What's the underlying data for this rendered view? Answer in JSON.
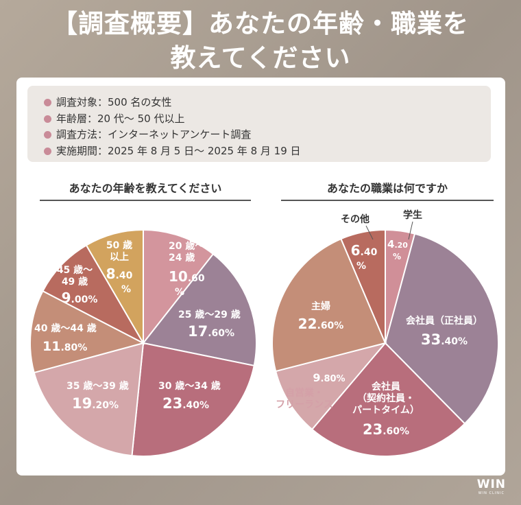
{
  "title": {
    "line1": "【調査概要】あなたの年齢・職業を",
    "line2": "教えてください"
  },
  "summary": [
    "調査対象：500 名の女性",
    "年齢層：20 代〜 50 代以上",
    "調査方法：インターネットアンケート調査",
    "実施期間：2025 年 8 月 5 日〜 2025 年 8 月 19 日"
  ],
  "logo": {
    "main": "WIN",
    "sub": "WIN CLINIC"
  },
  "chart_data": [
    {
      "type": "pie",
      "title": "あなたの年齢を教えてください",
      "categories": [
        "20 歳〜24 歳",
        "25 歳〜29 歳",
        "30 歳〜34 歳",
        "35 歳〜39 歳",
        "40 歳〜44 歳",
        "45 歳〜49 歳",
        "50 歳以上"
      ],
      "values": [
        10.6,
        17.6,
        23.4,
        19.2,
        11.8,
        9.0,
        8.4
      ],
      "colors": [
        "#d3959d",
        "#9c8296",
        "#b86e7c",
        "#d4a7aa",
        "#c48e78",
        "#b86b5f",
        "#d2a35e"
      ]
    },
    {
      "type": "pie",
      "title": "あなたの職業は何ですか",
      "categories": [
        "学生",
        "会社員（正社員）",
        "会社員（契約社員・パートタイム）",
        "自営業・フリーランス",
        "主婦",
        "その他"
      ],
      "values": [
        4.2,
        33.4,
        23.6,
        9.8,
        22.6,
        6.4
      ],
      "colors": [
        "#d08f98",
        "#9c8296",
        "#b86e7c",
        "#d4a7aa",
        "#c48e78",
        "#b86b5f"
      ]
    }
  ]
}
